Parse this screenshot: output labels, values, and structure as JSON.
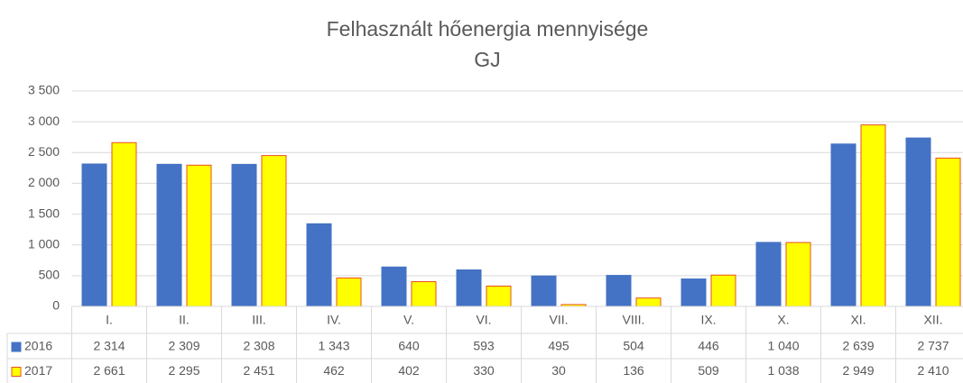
{
  "chart_data": {
    "type": "bar",
    "title": "Felhasznált hőenergia mennyisége",
    "subtitle": "GJ",
    "categories": [
      "I.",
      "II.",
      "III.",
      "IV.",
      "V.",
      "VI.",
      "VII.",
      "VIII.",
      "IX.",
      "X.",
      "XI.",
      "XII."
    ],
    "series": [
      {
        "name": "2016",
        "color": "#4472c4",
        "border": "#4472c4",
        "values": [
          2314,
          2309,
          2308,
          1343,
          640,
          593,
          495,
          504,
          446,
          1040,
          2639,
          2737
        ],
        "value_labels": [
          "2 314",
          "2 309",
          "2 308",
          "1 343",
          "640",
          "593",
          "495",
          "504",
          "446",
          "1 040",
          "2 639",
          "2 737"
        ]
      },
      {
        "name": "2017",
        "color": "#ffff00",
        "border": "#e8501e",
        "values": [
          2661,
          2295,
          2451,
          462,
          402,
          330,
          30,
          136,
          509,
          1038,
          2949,
          2410
        ],
        "value_labels": [
          "2 661",
          "2 295",
          "2 451",
          "462",
          "402",
          "330",
          "30",
          "136",
          "509",
          "1 038",
          "2 949",
          "2 410"
        ]
      }
    ],
    "ylim": [
      0,
      3500
    ],
    "yticks": [
      0,
      500,
      {
        "value": 1000,
        "label": "1 000"
      },
      {
        "value": 1500,
        "label": "1 500"
      },
      {
        "value": 2000,
        "label": "2 000"
      },
      {
        "value": 2500,
        "label": "2 500"
      },
      {
        "value": 3000,
        "label": "3 000"
      },
      {
        "value": 3500,
        "label": "3 500"
      }
    ],
    "grid": true,
    "data_table": true
  }
}
